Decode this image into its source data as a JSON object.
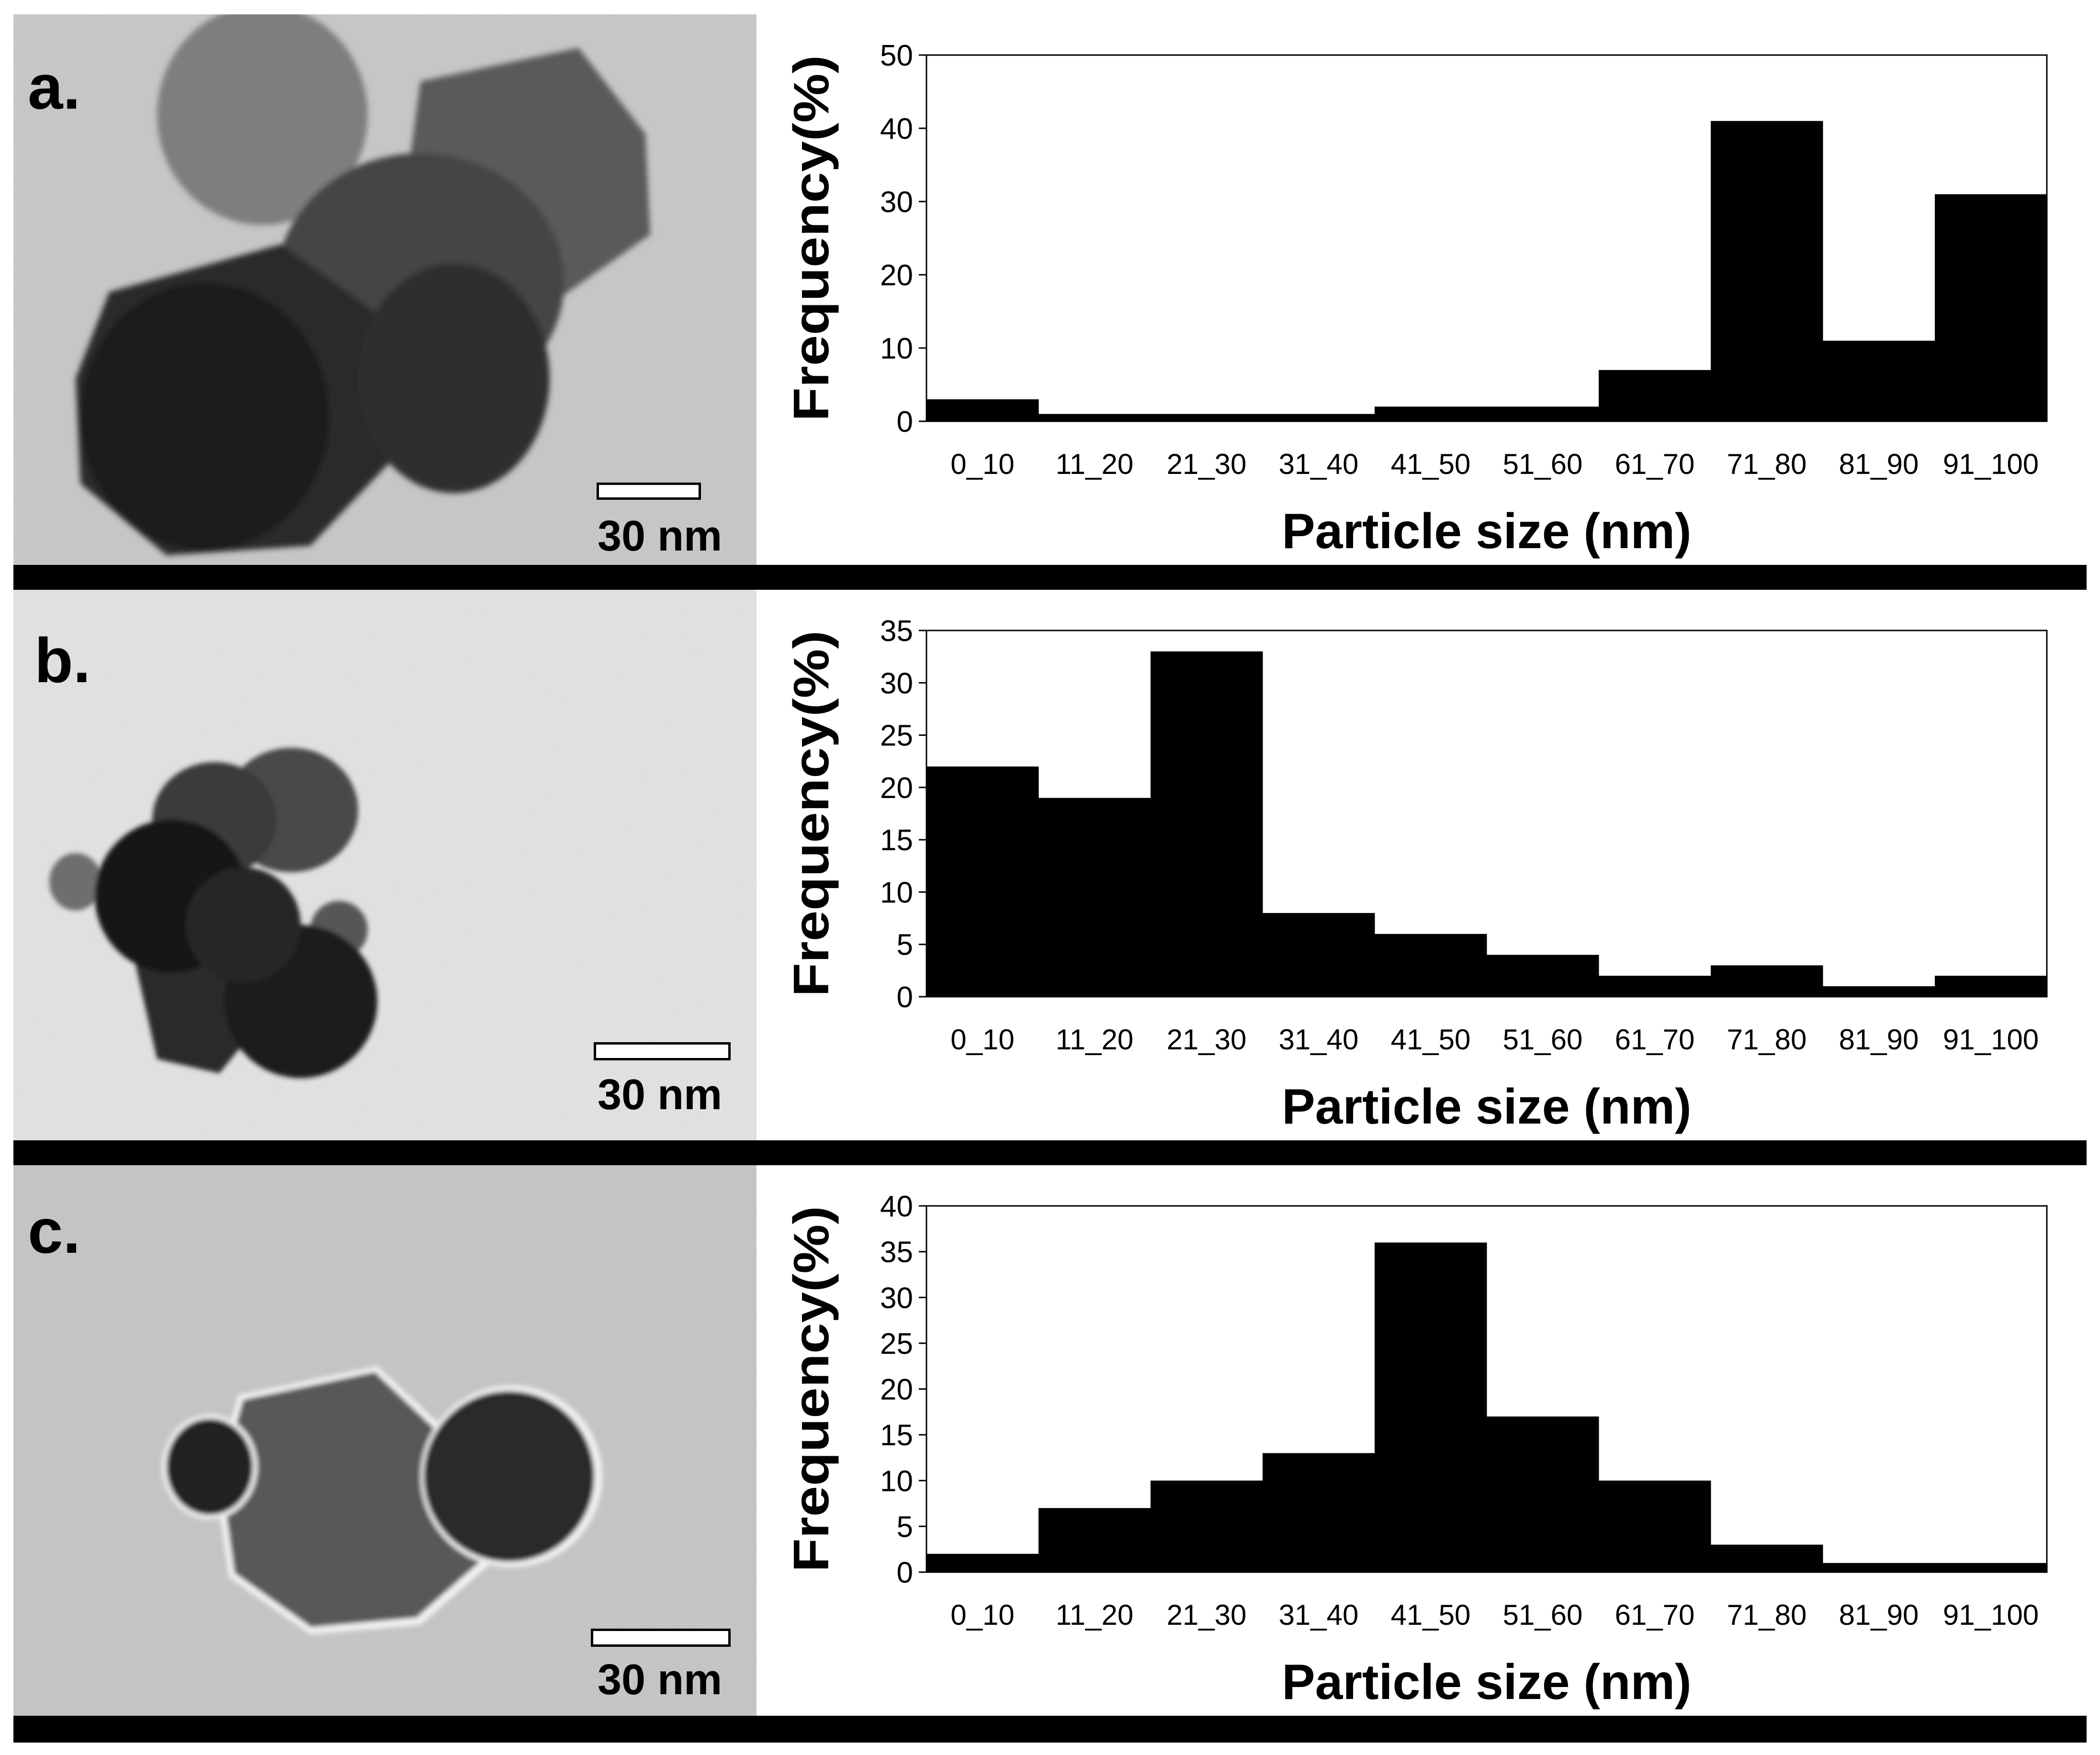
{
  "colors": {
    "bar": "#000000",
    "separator": "#000000",
    "micrograph_bg": "#c4c4c4"
  },
  "panels": [
    {
      "letter": "a.",
      "scale_label": "30 nm",
      "chart_data": {
        "type": "bar",
        "categories": [
          "0_10",
          "11_20",
          "21_30",
          "31_40",
          "41_50",
          "51_60",
          "61_70",
          "71_80",
          "81_90",
          "91_100"
        ],
        "values": [
          3,
          1,
          1,
          1,
          2,
          2,
          7,
          41,
          11,
          31
        ],
        "xlabel": "Particle size (nm)",
        "ylabel": "Frequency(%)",
        "ylim": [
          0,
          50
        ],
        "yticks": [
          0,
          10,
          20,
          30,
          40,
          50
        ],
        "grid": false,
        "legend": "none"
      }
    },
    {
      "letter": "b.",
      "scale_label": "30 nm",
      "chart_data": {
        "type": "bar",
        "categories": [
          "0_10",
          "11_20",
          "21_30",
          "31_40",
          "41_50",
          "51_60",
          "61_70",
          "71_80",
          "81_90",
          "91_100"
        ],
        "values": [
          22,
          19,
          33,
          8,
          6,
          4,
          2,
          3,
          1,
          2
        ],
        "xlabel": "Particle size (nm)",
        "ylabel": "Frequency(%)",
        "ylim": [
          0,
          35
        ],
        "yticks": [
          0,
          5,
          10,
          15,
          20,
          25,
          30,
          35
        ],
        "grid": false,
        "legend": "none"
      }
    },
    {
      "letter": "c.",
      "scale_label": "30 nm",
      "chart_data": {
        "type": "bar",
        "categories": [
          "0_10",
          "11_20",
          "21_30",
          "31_40",
          "41_50",
          "51_60",
          "61_70",
          "71_80",
          "81_90",
          "91_100"
        ],
        "values": [
          2,
          7,
          10,
          13,
          36,
          17,
          10,
          3,
          1,
          1
        ],
        "xlabel": "Particle size (nm)",
        "ylabel": "Frequency(%)",
        "ylim": [
          0,
          40
        ],
        "yticks": [
          0,
          5,
          10,
          15,
          20,
          25,
          30,
          35,
          40
        ],
        "grid": false,
        "legend": "none"
      }
    }
  ]
}
